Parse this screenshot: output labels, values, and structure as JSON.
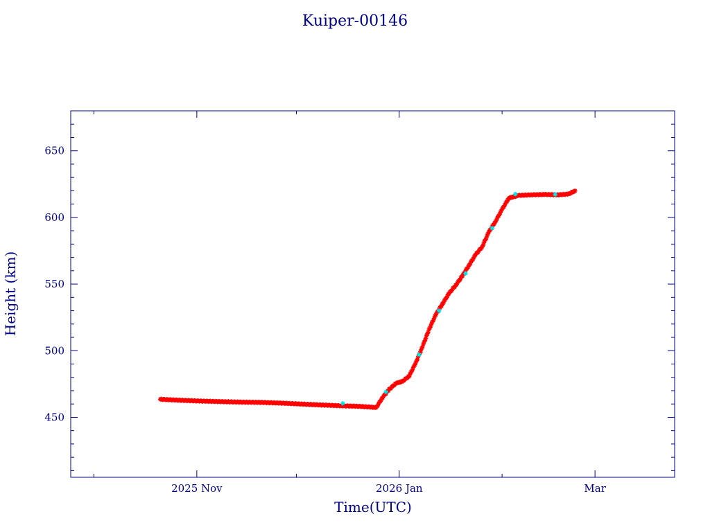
{
  "chart_data": {
    "type": "scatter",
    "title": "Kuiper-00146",
    "xlabel": "Time(UTC)",
    "ylabel": "Height (km)",
    "x_axis": {
      "type": "date",
      "range": [
        "2025-09-24",
        "2026-03-25"
      ],
      "ticks": [
        {
          "date": "2025-11-01",
          "label": "2025 Nov"
        },
        {
          "date": "2026-01-01",
          "label": "2026 Jan"
        },
        {
          "date": "2026-03-01",
          "label": "Mar"
        }
      ],
      "minor_ticks": [
        "2025-10-01",
        "2025-12-01",
        "2026-02-01"
      ]
    },
    "y_axis": {
      "range": [
        405,
        680
      ],
      "ticks": [
        450,
        500,
        550,
        600,
        650
      ],
      "minor_step": 10
    },
    "grid": false,
    "series": [
      {
        "color": "#ff0000",
        "marker": "star",
        "points": [
          [
            "2025-10-21",
            463.5
          ],
          [
            "2025-10-27",
            462.8
          ],
          [
            "2025-11-02",
            462.2
          ],
          [
            "2025-11-08",
            461.8
          ],
          [
            "2025-11-14",
            461.4
          ],
          [
            "2025-11-20",
            461.2
          ],
          [
            "2025-11-26",
            460.7
          ],
          [
            "2025-12-02",
            460.0
          ],
          [
            "2025-12-08",
            459.3
          ],
          [
            "2025-12-14",
            458.7
          ],
          [
            "2025-12-20",
            458.2
          ],
          [
            "2025-12-24",
            457.6
          ],
          [
            "2025-12-25",
            457.0
          ],
          [
            "2025-12-27",
            465.0
          ],
          [
            "2025-12-29",
            471.0
          ],
          [
            "2025-12-31",
            475.5
          ],
          [
            "2026-01-02",
            477.0
          ],
          [
            "2026-01-04",
            481.0
          ],
          [
            "2026-01-06",
            491.0
          ],
          [
            "2026-01-08",
            503.0
          ],
          [
            "2026-01-10",
            516.0
          ],
          [
            "2026-01-12",
            527.0
          ],
          [
            "2026-01-14",
            535.0
          ],
          [
            "2026-01-16",
            543.0
          ],
          [
            "2026-01-18",
            549.0
          ],
          [
            "2026-01-20",
            556.0
          ],
          [
            "2026-01-22",
            564.0
          ],
          [
            "2026-01-24",
            572.0
          ],
          [
            "2026-01-26",
            578.0
          ],
          [
            "2026-01-28",
            589.0
          ],
          [
            "2026-01-30",
            597.0
          ],
          [
            "2026-02-01",
            606.0
          ],
          [
            "2026-02-03",
            614.5
          ],
          [
            "2026-02-06",
            616.5
          ],
          [
            "2026-02-10",
            617.0
          ],
          [
            "2026-02-14",
            617.2
          ],
          [
            "2026-02-18",
            617.0
          ],
          [
            "2026-02-21",
            617.5
          ],
          [
            "2026-02-23",
            620.0
          ]
        ]
      },
      {
        "color": "#00e5e5",
        "marker": "star",
        "points": [
          [
            "2025-12-15",
            460.5
          ],
          [
            "2025-12-28",
            469.0
          ],
          [
            "2026-01-07",
            497.0
          ],
          [
            "2026-01-13",
            530.0
          ],
          [
            "2026-01-21",
            558.0
          ],
          [
            "2026-01-29",
            592.0
          ],
          [
            "2026-02-05",
            617.5
          ],
          [
            "2026-02-17",
            617.3
          ]
        ]
      }
    ]
  }
}
